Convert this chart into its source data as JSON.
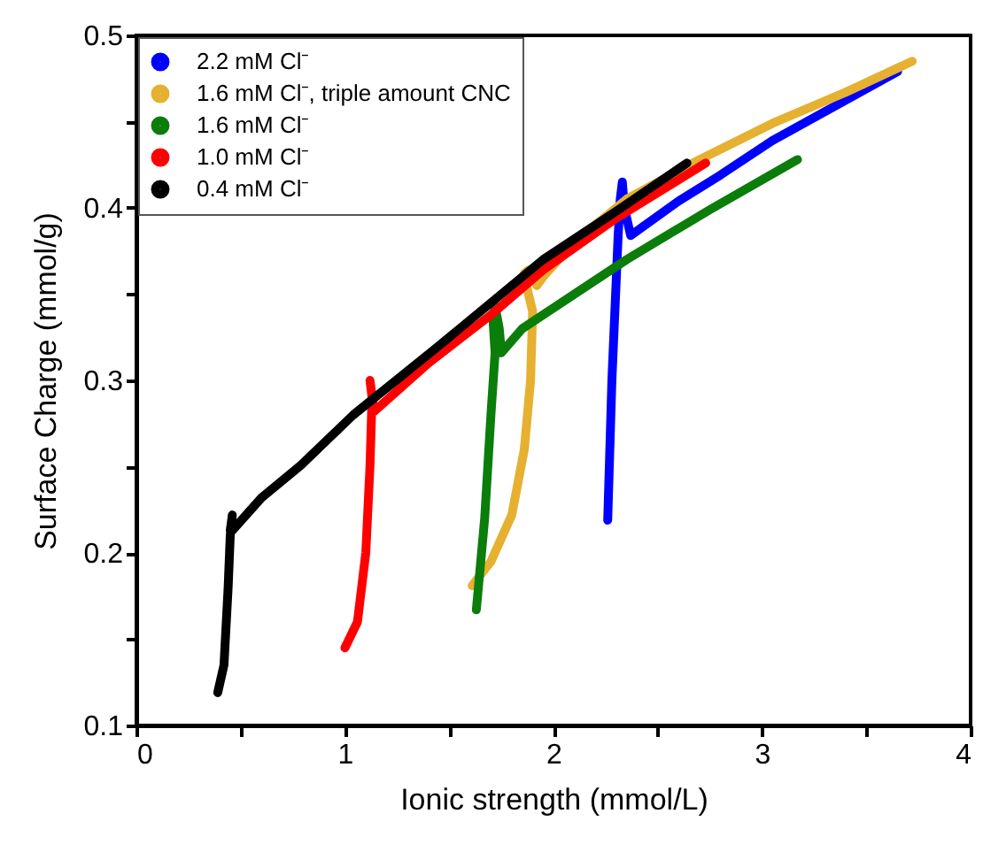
{
  "chart_data": {
    "type": "line",
    "xlabel": "Ionic strength (mmol/L)",
    "ylabel": "Surface Charge (mmol/g)",
    "xlim": [
      0,
      4
    ],
    "ylim": [
      0.1,
      0.5
    ],
    "xticks": [
      0,
      {
        "value": 0.5,
        "label": null
      },
      1,
      {
        "value": 1.5,
        "label": null
      },
      2,
      {
        "value": 2.5,
        "label": null
      },
      3,
      {
        "value": 3.5,
        "label": null
      },
      4
    ],
    "yticks": [
      0.1,
      {
        "value": 0.15,
        "label": null
      },
      0.2,
      {
        "value": 0.25,
        "label": null
      },
      0.3,
      {
        "value": 0.35,
        "label": null
      },
      0.4,
      {
        "value": 0.45,
        "label": null
      },
      0.5
    ],
    "legend": "top left",
    "marker": "none",
    "line_style": "solid",
    "grid": false,
    "series": [
      {
        "name": "2.2 mM Cl⁻",
        "color": "#0000ff",
        "x": [
          2.26,
          2.28,
          2.31,
          2.32,
          2.33,
          2.34,
          2.37,
          2.6,
          2.8,
          3.05,
          3.35,
          3.65
        ],
        "values": [
          0.219,
          0.3,
          0.384,
          0.405,
          0.415,
          0.4,
          0.384,
          0.404,
          0.419,
          0.439,
          0.459,
          0.479
        ]
      },
      {
        "name": "1.6 mM Cl⁻, triple amount CNC",
        "color": "#e6b030",
        "x": [
          1.61,
          1.7,
          1.8,
          1.86,
          1.89,
          1.9,
          1.87,
          1.86,
          1.88,
          1.92,
          1.95,
          2.1,
          2.35,
          2.7,
          3.05,
          3.4,
          3.72
        ],
        "values": [
          0.181,
          0.195,
          0.222,
          0.26,
          0.3,
          0.34,
          0.355,
          0.362,
          0.364,
          0.355,
          0.36,
          0.38,
          0.405,
          0.428,
          0.449,
          0.467,
          0.485
        ]
      },
      {
        "name": "1.6 mM Cl⁻",
        "color": "#0a7d0a",
        "x": [
          1.63,
          1.67,
          1.7,
          1.72,
          1.71,
          1.72,
          1.74,
          1.75,
          1.85,
          2.1,
          2.35,
          2.75,
          3.17
        ],
        "values": [
          0.167,
          0.22,
          0.28,
          0.316,
          0.335,
          0.343,
          0.33,
          0.316,
          0.33,
          0.35,
          0.37,
          0.399,
          0.428
        ]
      },
      {
        "name": "1.0 mM Cl⁻",
        "color": "#ff0000",
        "x": [
          1.0,
          1.06,
          1.1,
          1.12,
          1.13,
          1.12,
          1.14,
          1.4,
          1.7,
          1.95,
          2.3,
          2.73
        ],
        "values": [
          0.145,
          0.16,
          0.2,
          0.25,
          0.29,
          0.3,
          0.282,
          0.31,
          0.338,
          0.364,
          0.394,
          0.426
        ]
      },
      {
        "name": "0.4 mM Cl⁻",
        "color": "#000000",
        "x": [
          0.39,
          0.42,
          0.44,
          0.45,
          0.46,
          0.45,
          0.46,
          0.6,
          0.79,
          1.04,
          1.44,
          1.95,
          2.3,
          2.64
        ],
        "values": [
          0.119,
          0.135,
          0.18,
          0.21,
          0.222,
          0.213,
          0.213,
          0.232,
          0.251,
          0.28,
          0.319,
          0.37,
          0.398,
          0.426
        ]
      }
    ]
  }
}
